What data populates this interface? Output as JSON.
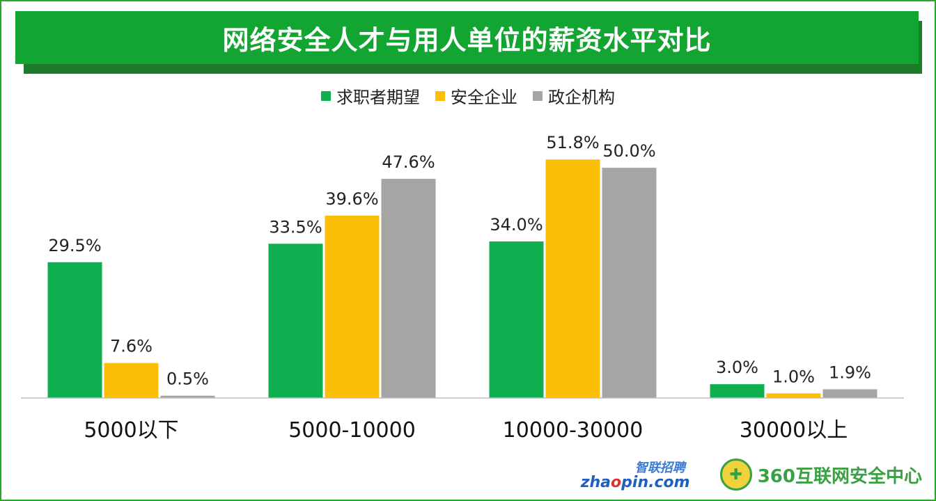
{
  "title": "网络安全人才与用人单位的薪资水平对比",
  "chart_data": {
    "type": "bar",
    "categories": [
      "5000以下",
      "5000-10000",
      "10000-30000",
      "30000以上"
    ],
    "series": [
      {
        "name": "求职者期望",
        "color": "#0fae4f",
        "values": [
          29.5,
          33.5,
          34.0,
          3.0
        ]
      },
      {
        "name": "安全企业",
        "color": "#fbbf08",
        "values": [
          7.6,
          39.6,
          51.8,
          1.0
        ]
      },
      {
        "name": "政企机构",
        "color": "#a5a5a5",
        "values": [
          0.5,
          47.6,
          50.0,
          1.9
        ]
      }
    ],
    "ylim": [
      0,
      55
    ],
    "data_labels": [
      [
        "29.5%",
        "33.5%",
        "34.0%",
        "3.0%"
      ],
      [
        "7.6%",
        "39.6%",
        "51.8%",
        "1.0%"
      ],
      [
        "0.5%",
        "47.6%",
        "50.0%",
        "1.9%"
      ]
    ],
    "legend_position": "top",
    "grid": false
  },
  "logos": {
    "zhaopin_cn": "智联招聘",
    "zhaopin_en_a": "zha",
    "zhaopin_en_o": "o",
    "zhaopin_en_b": "pin.com",
    "security": "360互联网安全中心"
  }
}
